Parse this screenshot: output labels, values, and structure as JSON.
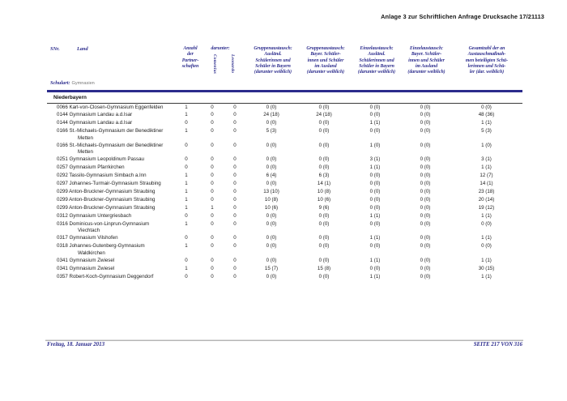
{
  "colors": {
    "accent_navy": "#2b2b8c"
  },
  "doc": {
    "title": "Anlage 3 zur Schriftlichen Anfrage Drucksache 17/21113",
    "footer_date": "Freitag, 18. Januar 2013",
    "footer_page": "SEITE 217 VON 316"
  },
  "header": {
    "snr": "SNr.",
    "land": "Land",
    "schulart_label": "Schulart:",
    "schulart_value": "Gymnasien",
    "anzahl": "Anzahl\nder\nPartner-\nschaften",
    "darunter": "darunter:",
    "comenius": "Comenius",
    "leonardo": "Leonardo",
    "ga_ausl": "Gruppenaustausch:\nAusländ.\nSchülerinnen und\nSchüler in Bayern\n(darunter weiblich)",
    "ga_bayer": "Gruppenaustausch:\nBayer. Schüler-\ninnen und Schüler\nim Ausland\n(darunter weiblich)",
    "ea_ausl": "Einzelaustausch:\nAusländ.\nSchülerinnen und\nSchüler in Bayern\n(darunter weiblich)",
    "ea_bayer": "Einzelaustausch:\nBayer. Schüler-\ninnen und Schüler\nim Ausland\n(darunter weiblich)",
    "gesamt": "Gesamtzahl der an\nAustauschmaßnah-\nmen beteiligten Schü-\nlerinnen und Schü-\nler (dar. weiblich)"
  },
  "table": {
    "region": "Niederbayern",
    "rows": [
      {
        "name": "0066 Karl-von-Closen-Gymnasium Eggenfelden",
        "name2": "",
        "values": [
          "1",
          "0",
          "0",
          "0 (0)",
          "0 (0)",
          "0 (0)",
          "0 (0)",
          "0 (0)"
        ]
      },
      {
        "name": "0144 Gymnasium Landau a.d.Isar",
        "name2": "",
        "values": [
          "1",
          "0",
          "0",
          "24 (18)",
          "24 (18)",
          "0 (0)",
          "0 (0)",
          "48 (36)"
        ]
      },
      {
        "name": "0144 Gymnasium Landau a.d.Isar",
        "name2": "",
        "values": [
          "0",
          "0",
          "0",
          "0 (0)",
          "0 (0)",
          "1 (1)",
          "0 (0)",
          "1 (1)"
        ]
      },
      {
        "name": "0166 St.-Michaels-Gymnasium der Benediktiner",
        "name2": "Metten",
        "values": [
          "1",
          "0",
          "0",
          "5 (3)",
          "0 (0)",
          "0 (0)",
          "0 (0)",
          "5 (3)"
        ]
      },
      {
        "name": "0166 St.-Michaels-Gymnasium der Benediktiner",
        "name2": "Metten",
        "values": [
          "0",
          "0",
          "0",
          "0 (0)",
          "0 (0)",
          "1 (0)",
          "0 (0)",
          "1 (0)"
        ]
      },
      {
        "name": "0251 Gymnasium Leopoldinum Passau",
        "name2": "",
        "values": [
          "0",
          "0",
          "0",
          "0 (0)",
          "0 (0)",
          "3 (1)",
          "0 (0)",
          "3 (1)"
        ]
      },
      {
        "name": "0257 Gymnasium Pfarrkirchen",
        "name2": "",
        "values": [
          "0",
          "0",
          "0",
          "0 (0)",
          "0 (0)",
          "1 (1)",
          "0 (0)",
          "1 (1)"
        ]
      },
      {
        "name": "0292 Tassilo-Gymnasium Simbach a.Inn",
        "name2": "",
        "values": [
          "1",
          "0",
          "0",
          "6 (4)",
          "6 (3)",
          "0 (0)",
          "0 (0)",
          "12 (7)"
        ]
      },
      {
        "name": "0297 Johannes-Turmair-Gymnasium Straubing",
        "name2": "",
        "values": [
          "1",
          "0",
          "0",
          "0 (0)",
          "14 (1)",
          "0 (0)",
          "0 (0)",
          "14 (1)"
        ]
      },
      {
        "name": "0299 Anton-Bruckner-Gymnasium Straubing",
        "name2": "",
        "values": [
          "1",
          "0",
          "0",
          "13 (10)",
          "10 (8)",
          "0 (0)",
          "0 (0)",
          "23 (18)"
        ]
      },
      {
        "name": "0299 Anton-Bruckner-Gymnasium Straubing",
        "name2": "",
        "values": [
          "1",
          "0",
          "0",
          "10 (8)",
          "10 (6)",
          "0 (0)",
          "0 (0)",
          "20 (14)"
        ]
      },
      {
        "name": "0299 Anton-Bruckner-Gymnasium Straubing",
        "name2": "",
        "values": [
          "1",
          "1",
          "0",
          "10 (6)",
          "9 (6)",
          "0 (0)",
          "0 (0)",
          "19 (12)"
        ]
      },
      {
        "name": "0312 Gymnasium Untergriesbach",
        "name2": "",
        "values": [
          "0",
          "0",
          "0",
          "0 (0)",
          "0 (0)",
          "1 (1)",
          "0 (0)",
          "1 (1)"
        ]
      },
      {
        "name": "0316 Dominicus-von-Linprun-Gymnasium",
        "name2": "Viechtach",
        "values": [
          "1",
          "0",
          "0",
          "0 (0)",
          "0 (0)",
          "0 (0)",
          "0 (0)",
          "0 (0)"
        ]
      },
      {
        "name": "0317 Gymnasium Vilshofen",
        "name2": "",
        "values": [
          "0",
          "0",
          "0",
          "0 (0)",
          "0 (0)",
          "1 (1)",
          "0 (0)",
          "1 (1)"
        ]
      },
      {
        "name": "0318 Johannes-Gutenberg-Gymnasium",
        "name2": "Waldkirchen",
        "values": [
          "1",
          "0",
          "0",
          "0 (0)",
          "0 (0)",
          "0 (0)",
          "0 (0)",
          "0 (0)"
        ]
      },
      {
        "name": "0341 Gymnasium Zwiesel",
        "name2": "",
        "values": [
          "0",
          "0",
          "0",
          "0 (0)",
          "0 (0)",
          "1 (1)",
          "0 (0)",
          "1 (1)"
        ]
      },
      {
        "name": "0341 Gymnasium Zwiesel",
        "name2": "",
        "values": [
          "1",
          "0",
          "0",
          "15 (7)",
          "15 (8)",
          "0 (0)",
          "0 (0)",
          "30 (15)"
        ]
      },
      {
        "name": "0357 Robert-Koch-Gymnasium Deggendorf",
        "name2": "",
        "values": [
          "0",
          "0",
          "0",
          "0 (0)",
          "0 (0)",
          "1 (1)",
          "0 (0)",
          "1 (1)"
        ]
      }
    ]
  }
}
